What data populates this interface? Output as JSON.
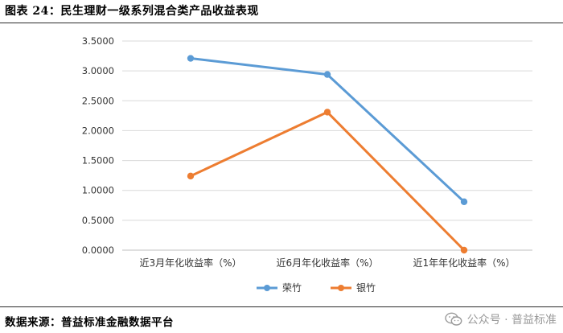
{
  "figure": {
    "title": "图表 24：民生理财一级系列混合类产品收益表现",
    "source": "数据来源：普益标准金融数据平台",
    "watermark": "公众号 · 普益标准",
    "watermark_icon": "wechat-icon"
  },
  "chart_data": {
    "type": "line",
    "title": "",
    "xlabel": "",
    "ylabel": "",
    "categories": [
      "近3月年化收益率（%）",
      "近6月年化收益率（%）",
      "近1年年化收益率（%）"
    ],
    "ylim": [
      0,
      3.5
    ],
    "yticks": [
      "0.0000",
      "0.5000",
      "1.0000",
      "1.5000",
      "2.0000",
      "2.5000",
      "3.0000",
      "3.5000"
    ],
    "grid": true,
    "legend_position": "bottom",
    "series": [
      {
        "name": "荣竹",
        "color": "#5B9BD5",
        "values": [
          3.21,
          2.94,
          0.81
        ]
      },
      {
        "name": "银竹",
        "color": "#ED7D31",
        "values": [
          1.24,
          2.31,
          0.0
        ]
      }
    ]
  }
}
